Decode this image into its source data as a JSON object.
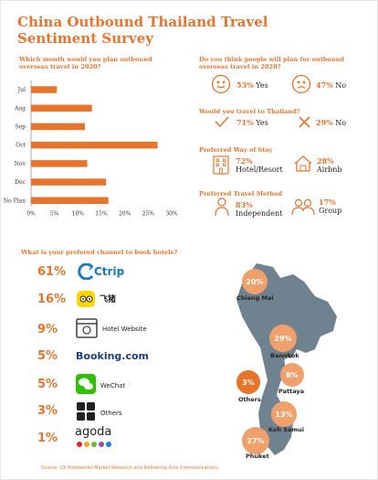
{
  "title": "China Outbound Thailand Travel Sentiment Survey",
  "chart_data": {
    "type": "bar",
    "title": "Which month would you plan outbound overseas travel in 2020?",
    "categories": [
      "Jul",
      "Aug",
      "Sep",
      "Oct",
      "Nov",
      "Dec",
      "No Plan"
    ],
    "values": [
      5.5,
      13,
      11.5,
      27,
      12,
      16,
      16.5
    ],
    "xlim": [
      0,
      30
    ],
    "xticks": [
      "0%",
      "5%",
      "10%",
      "15%",
      "20%",
      "25%",
      "30%"
    ],
    "orientation": "horizontal",
    "bar_color": "#e8742b"
  },
  "q_plan": {
    "question": "Do you think people will plan for outbound overseas travel in 2020?",
    "yes_pct": "53%",
    "yes_label": "Yes",
    "no_pct": "47%",
    "no_label": "No"
  },
  "q_thailand": {
    "question": "Would you travel to Thailand?",
    "yes_pct": "71%",
    "yes_label": "Yes",
    "no_pct": "29%",
    "no_label": "No"
  },
  "q_stay": {
    "question": "Preferred Way of Stay",
    "a_pct": "72%",
    "a_label": "Hotel/Resort",
    "b_pct": "28%",
    "b_label": "Airbnb"
  },
  "q_method": {
    "question": "Preferred Travel Method",
    "a_pct": "83%",
    "a_label": "Independent",
    "b_pct": "17%",
    "b_label": "Group"
  },
  "channels": {
    "question": "What is your prefered channel to book hotels?",
    "items": [
      {
        "pct": "61%",
        "name": "Ctrip"
      },
      {
        "pct": "16%",
        "name": "飞猪"
      },
      {
        "pct": "9%",
        "name": "Hotel Website"
      },
      {
        "pct": "5%",
        "name": "Booking.com"
      },
      {
        "pct": "5%",
        "name": "WeChat"
      },
      {
        "pct": "3%",
        "name": "Others"
      },
      {
        "pct": "1%",
        "name": "agoda"
      }
    ]
  },
  "destinations": [
    {
      "pct": "20%",
      "name": "Chiang Mai"
    },
    {
      "pct": "29%",
      "name": "Bangkok"
    },
    {
      "pct": "8%",
      "name": "Pattaya"
    },
    {
      "pct": "3%",
      "name": "Others"
    },
    {
      "pct": "13%",
      "name": "Koh Samui"
    },
    {
      "pct": "27%",
      "name": "Phuket"
    }
  ],
  "source": "Source: C9 Hotelworks Market Research and Delivering Asia Communications",
  "colors": {
    "accent": "#e8742b",
    "light": "#f0a06a",
    "map": "#6f8290"
  }
}
